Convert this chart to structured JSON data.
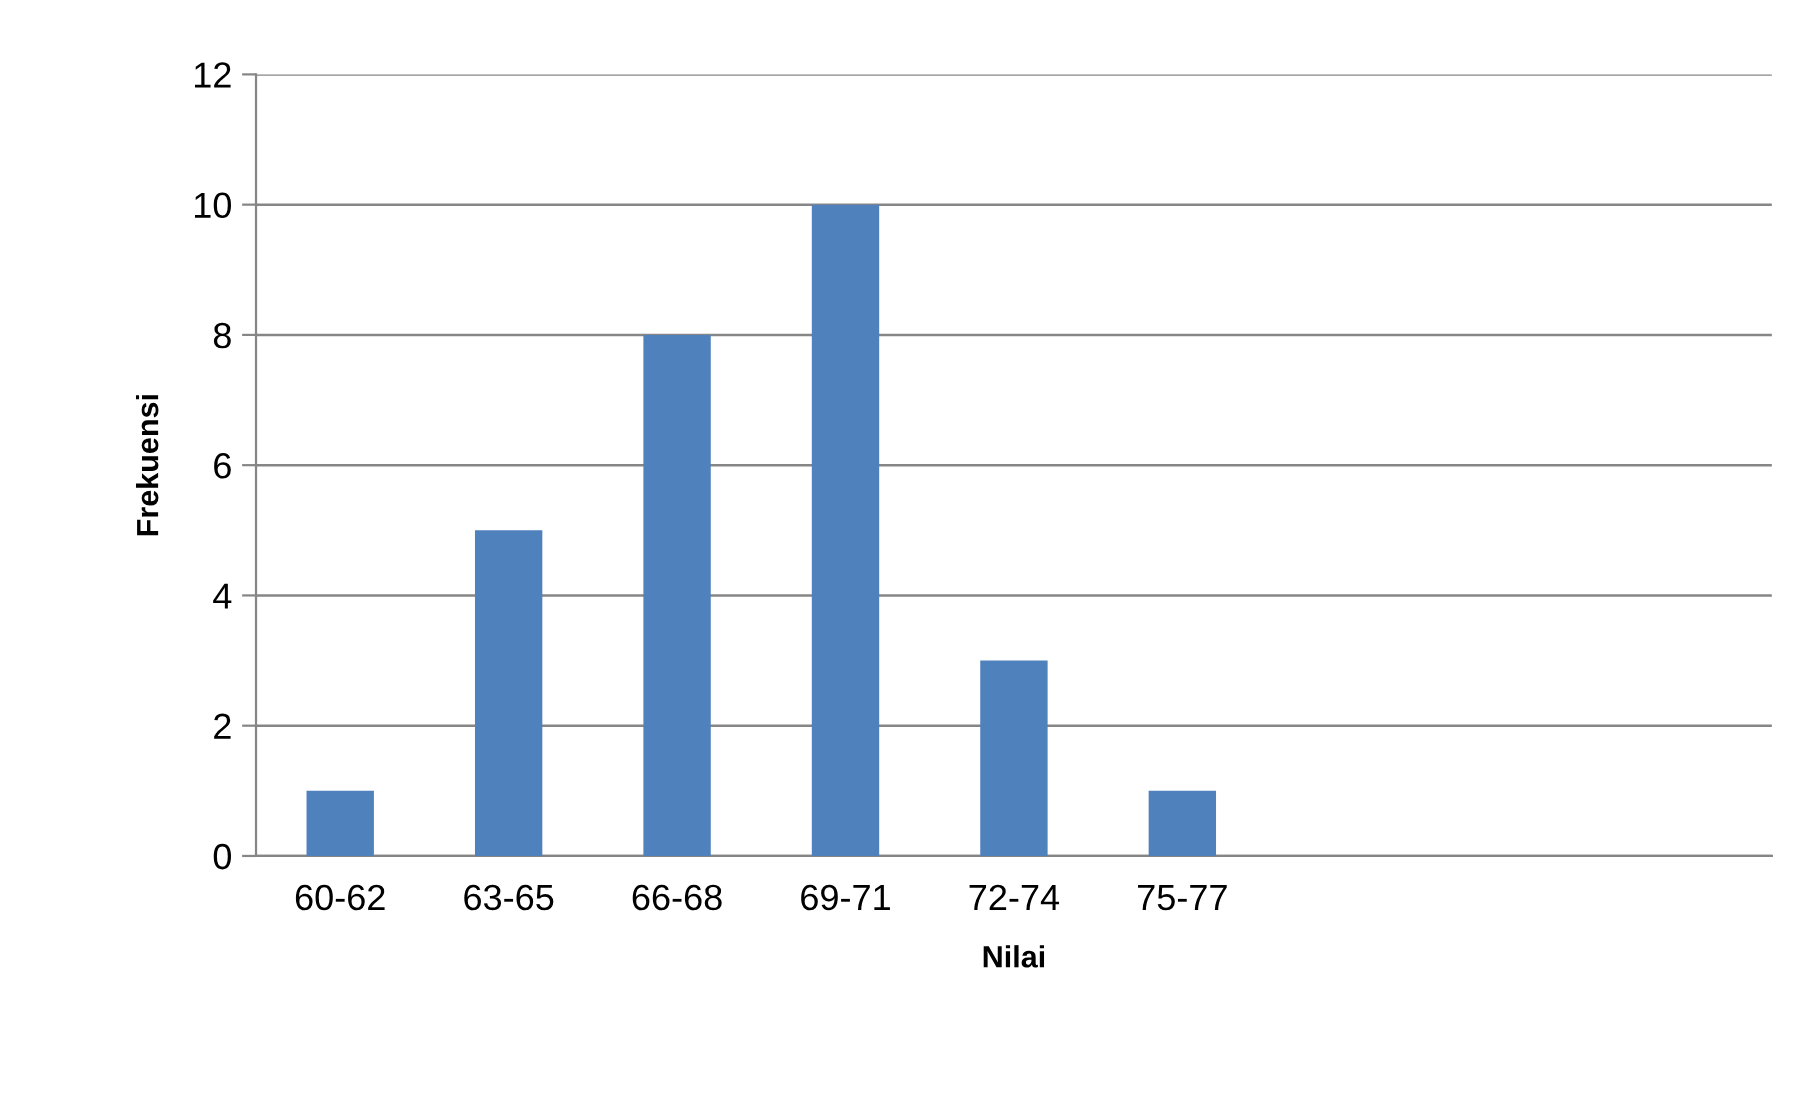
{
  "chart_data": {
    "type": "bar",
    "xlabel": "Nilai",
    "ylabel": "Frekuensi",
    "categories": [
      "60-62",
      "63-65",
      "66-68",
      "69-71",
      "72-74",
      "75-77",
      null,
      null,
      null
    ],
    "values": [
      1,
      5,
      8,
      10,
      3,
      1,
      null,
      null,
      null
    ],
    "color": "#4f81bd",
    "ylim": [
      0,
      12
    ],
    "yticks": [
      0,
      2,
      4,
      6,
      8,
      10,
      12
    ],
    "grid": "y",
    "legend": false
  }
}
